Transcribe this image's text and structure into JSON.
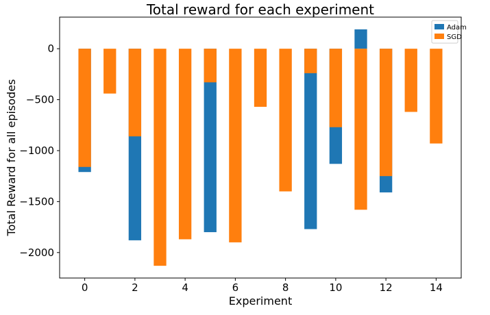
{
  "chart_data": {
    "type": "bar",
    "title": "Total reward for each experiment",
    "xlabel": "Experiment",
    "ylabel": "Total Reward for all episodes",
    "x": [
      0,
      1,
      2,
      3,
      4,
      5,
      6,
      7,
      8,
      9,
      10,
      11,
      12,
      13,
      14
    ],
    "xticks": [
      "0",
      "2",
      "4",
      "6",
      "8",
      "10",
      "12",
      "14"
    ],
    "yticks": [
      "0",
      "−500",
      "−1000",
      "−1500",
      "−2000"
    ],
    "xlim": [
      -1,
      15
    ],
    "ylim": [
      -2250,
      310
    ],
    "series": [
      {
        "name": "Adam",
        "color": "#1f77b4",
        "values": [
          -1210,
          null,
          -1880,
          null,
          null,
          -1800,
          null,
          null,
          null,
          -1770,
          -1130,
          190,
          -1410,
          null,
          null
        ]
      },
      {
        "name": "SGD",
        "color": "#ff7f0e",
        "values": [
          -1160,
          -440,
          -860,
          -2130,
          -1870,
          -330,
          -1900,
          -570,
          -1400,
          -240,
          -770,
          -1580,
          -1250,
          -620,
          -930
        ]
      }
    ],
    "legend_position": "top-right",
    "grid": false
  }
}
